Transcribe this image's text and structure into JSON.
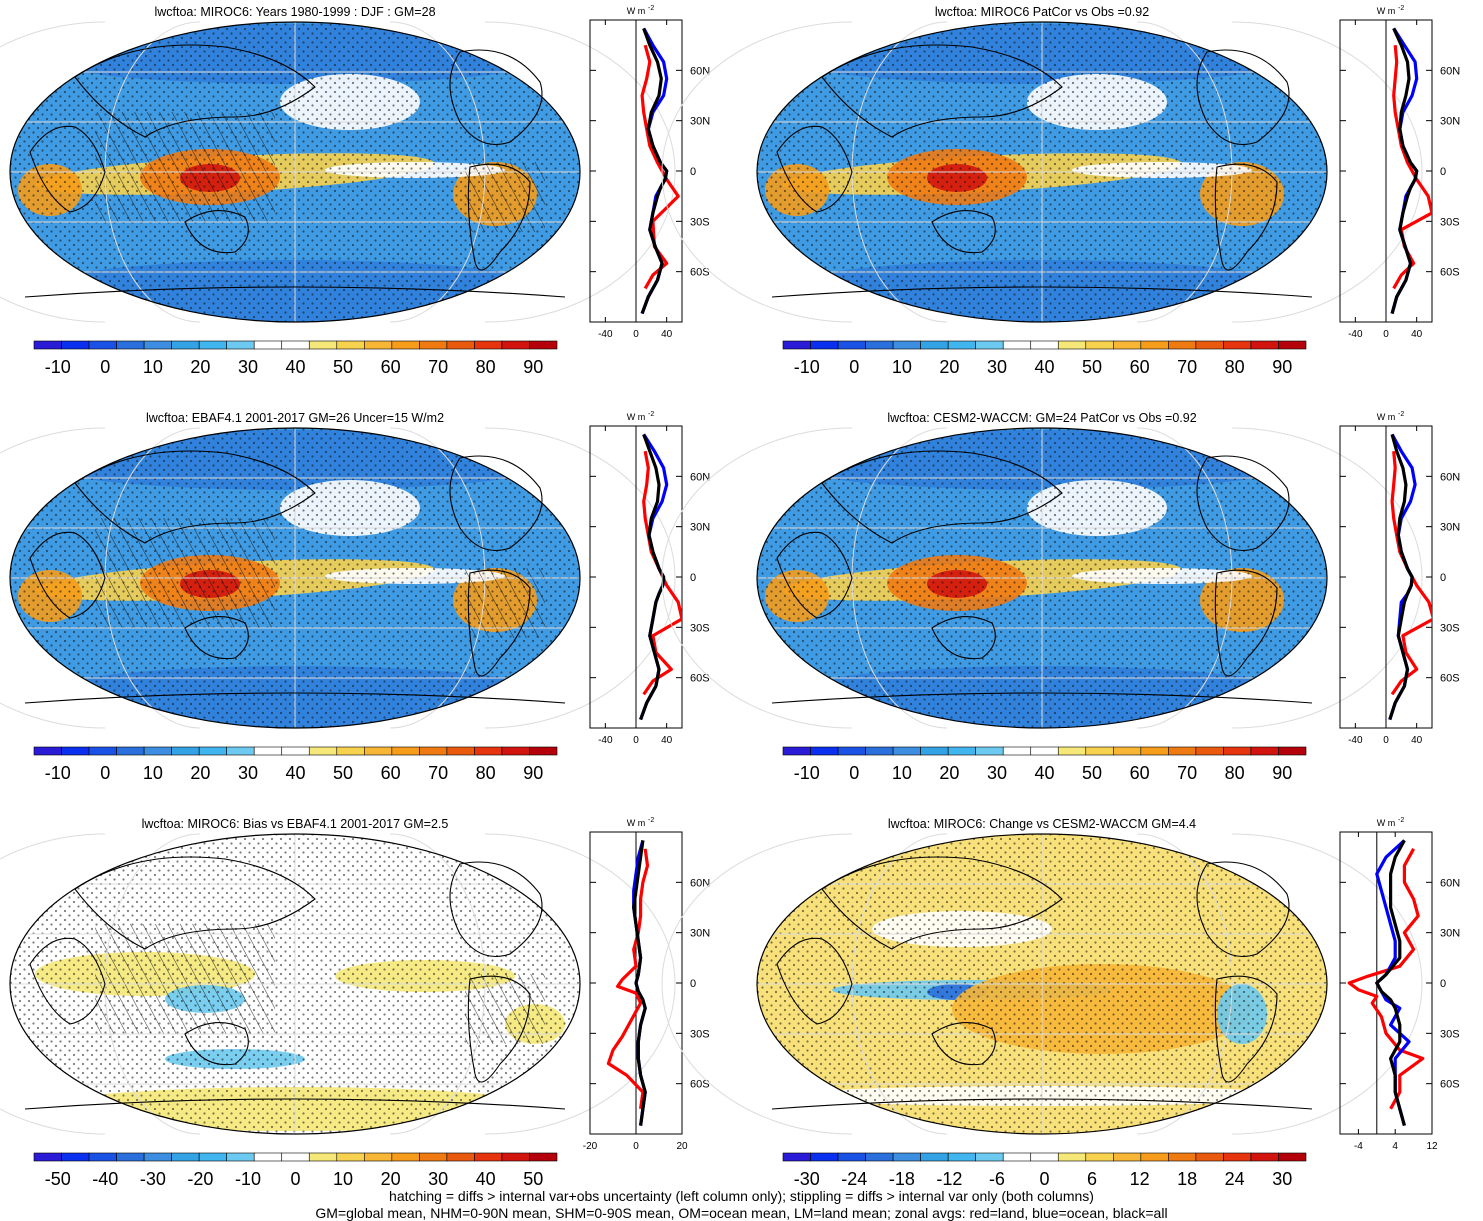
{
  "figure_notes": {
    "line1": "hatching = diffs > internal var+obs uncertainty (left column only); stippling = diffs > internal var only (both columns)",
    "line2": "GM=global mean, NHM=0-90N mean, SHM=0-90S mean, OM=ocean mean, LM=land mean; zonal avgs: red=land, blue=ocean, black=all"
  },
  "zonal_legend": {
    "land": "#ff0000",
    "ocean": "#0000ff",
    "all": "#000000"
  },
  "chart_data": [
    {
      "type": "heatmap",
      "panel": "miroc6-climatology",
      "title": "lwcftoa: MIROC6: Years 1980-1999 : DJF : GM=28",
      "global_mean": 28,
      "colorbar": {
        "ticks": [
          "-10",
          "0",
          "10",
          "20",
          "30",
          "40",
          "50",
          "60",
          "70",
          "80",
          "90"
        ],
        "range": [
          -15,
          95
        ],
        "palette": "blue-white-yellow-red"
      },
      "hatching": true,
      "stippling": true,
      "zonal_profile": {
        "unit_label": "W m",
        "unit_sup": "-2",
        "xlim": [
          -60,
          60
        ],
        "xticks": [
          "-40",
          "0",
          "40"
        ],
        "lat_ticks": [
          "60N",
          "30N",
          "0",
          "30S",
          "60S"
        ],
        "all": {
          "lat": [
            85,
            75,
            65,
            55,
            45,
            35,
            25,
            15,
            5,
            0,
            -5,
            -10,
            -15,
            -25,
            -35,
            -45,
            -55,
            -65,
            -75,
            -85
          ],
          "values": [
            10,
            18,
            28,
            33,
            30,
            20,
            16,
            22,
            32,
            40,
            38,
            32,
            28,
            22,
            18,
            25,
            34,
            28,
            16,
            8
          ]
        },
        "ocean": {
          "lat": [
            85,
            75,
            65,
            55,
            45,
            35,
            25,
            15,
            5,
            0,
            -5,
            -10,
            -15,
            -25,
            -35,
            -45,
            -55,
            -65,
            -75,
            -85
          ],
          "values": [
            10,
            22,
            36,
            40,
            36,
            22,
            16,
            22,
            32,
            40,
            38,
            32,
            26,
            22,
            18,
            25,
            34,
            28,
            16,
            8
          ]
        },
        "land": {
          "lat": [
            75,
            65,
            55,
            45,
            35,
            25,
            15,
            5,
            -5,
            -15,
            -30,
            -45,
            -55,
            -62,
            -70
          ],
          "values": [
            12,
            18,
            14,
            8,
            10,
            14,
            18,
            28,
            40,
            55,
            22,
            24,
            40,
            22,
            12
          ]
        }
      }
    },
    {
      "type": "heatmap",
      "panel": "miroc6-patcor",
      "title": "lwcftoa: MIROC6 PatCor vs Obs =0.92",
      "pattern_correlation": 0.92,
      "colorbar": {
        "ticks": [
          "-10",
          "0",
          "10",
          "20",
          "30",
          "40",
          "50",
          "60",
          "70",
          "80",
          "90"
        ],
        "range": [
          -15,
          95
        ],
        "palette": "blue-white-yellow-red"
      },
      "hatching": false,
      "stippling": true,
      "zonal_profile": {
        "unit_label": "W m",
        "unit_sup": "-2",
        "xlim": [
          -60,
          60
        ],
        "xticks": [
          "-40",
          "0",
          "40"
        ],
        "lat_ticks": [
          "60N",
          "30N",
          "0",
          "30S",
          "60S"
        ],
        "all": {
          "lat": [
            85,
            75,
            65,
            55,
            45,
            35,
            25,
            15,
            5,
            0,
            -5,
            -10,
            -15,
            -25,
            -35,
            -45,
            -55,
            -65,
            -75,
            -85
          ],
          "values": [
            10,
            20,
            28,
            30,
            26,
            20,
            18,
            22,
            32,
            40,
            38,
            32,
            28,
            22,
            18,
            25,
            32,
            26,
            14,
            8
          ]
        },
        "ocean": {
          "lat": [
            85,
            75,
            65,
            55,
            45,
            35,
            25,
            15,
            5,
            0,
            -5,
            -10,
            -15,
            -25,
            -35,
            -45,
            -55,
            -65,
            -75,
            -85
          ],
          "values": [
            10,
            24,
            38,
            40,
            34,
            22,
            18,
            22,
            32,
            40,
            38,
            32,
            26,
            22,
            18,
            25,
            32,
            26,
            14,
            8
          ]
        },
        "land": {
          "lat": [
            75,
            65,
            55,
            45,
            35,
            25,
            15,
            5,
            -5,
            -15,
            -25,
            -35,
            -45,
            -55,
            -62,
            -70
          ],
          "values": [
            12,
            14,
            12,
            10,
            12,
            16,
            20,
            28,
            40,
            55,
            60,
            20,
            24,
            36,
            20,
            10
          ]
        }
      }
    },
    {
      "type": "heatmap",
      "panel": "ebaf-observations",
      "title": "lwcftoa: EBAF4.1 2001-2017 GM=26 Uncer=15 W/m2",
      "global_mean": 26,
      "uncertainty": "15 W/m2",
      "colorbar": {
        "ticks": [
          "-10",
          "0",
          "10",
          "20",
          "30",
          "40",
          "50",
          "60",
          "70",
          "80",
          "90"
        ],
        "range": [
          -15,
          95
        ],
        "palette": "blue-white-yellow-red"
      },
      "hatching": true,
      "stippling": true,
      "zonal_profile": {
        "unit_label": "W m",
        "unit_sup": "-2",
        "xlim": [
          -60,
          60
        ],
        "xticks": [
          "-40",
          "0",
          "40"
        ],
        "lat_ticks": [
          "60N",
          "30N",
          "0",
          "30S",
          "60S"
        ],
        "all": {
          "lat": [
            85,
            75,
            65,
            55,
            45,
            35,
            25,
            15,
            5,
            0,
            -5,
            -10,
            -15,
            -25,
            -35,
            -45,
            -55,
            -65,
            -75,
            -85
          ],
          "values": [
            10,
            18,
            26,
            30,
            28,
            20,
            17,
            22,
            30,
            36,
            35,
            30,
            26,
            22,
            18,
            24,
            30,
            26,
            14,
            6
          ]
        },
        "ocean": {
          "lat": [
            85,
            75,
            65,
            55,
            45,
            35,
            25,
            15,
            5,
            0,
            -5,
            -10,
            -15,
            -25,
            -35,
            -45,
            -55,
            -65,
            -75,
            -85
          ],
          "values": [
            10,
            24,
            36,
            40,
            34,
            22,
            17,
            22,
            30,
            36,
            35,
            30,
            26,
            22,
            18,
            24,
            30,
            26,
            14,
            6
          ]
        },
        "land": {
          "lat": [
            75,
            65,
            55,
            45,
            35,
            25,
            15,
            5,
            -5,
            -15,
            -25,
            -35,
            -45,
            -55,
            -62,
            -70
          ],
          "values": [
            12,
            16,
            14,
            10,
            12,
            16,
            20,
            30,
            40,
            55,
            60,
            22,
            26,
            46,
            22,
            10
          ]
        }
      }
    },
    {
      "type": "heatmap",
      "panel": "cesm2-waccm-climatology",
      "title": "lwcftoa: CESM2-WACCM: GM=24 PatCor vs Obs =0.92",
      "global_mean": 24,
      "pattern_correlation": 0.92,
      "colorbar": {
        "ticks": [
          "-10",
          "0",
          "10",
          "20",
          "30",
          "40",
          "50",
          "60",
          "70",
          "80",
          "90"
        ],
        "range": [
          -15,
          95
        ],
        "palette": "blue-white-yellow-red"
      },
      "hatching": false,
      "stippling": true,
      "zonal_profile": {
        "unit_label": "W m",
        "unit_sup": "-2",
        "xlim": [
          -60,
          60
        ],
        "xticks": [
          "-40",
          "0",
          "40"
        ],
        "lat_ticks": [
          "60N",
          "30N",
          "0",
          "30S",
          "60S"
        ],
        "all": {
          "lat": [
            85,
            75,
            65,
            55,
            45,
            35,
            25,
            15,
            5,
            0,
            -5,
            -10,
            -15,
            -25,
            -35,
            -45,
            -55,
            -65,
            -75,
            -85
          ],
          "values": [
            8,
            14,
            22,
            26,
            24,
            18,
            16,
            20,
            28,
            34,
            33,
            28,
            24,
            20,
            16,
            22,
            28,
            24,
            12,
            5
          ]
        },
        "ocean": {
          "lat": [
            85,
            75,
            65,
            55,
            45,
            35,
            25,
            15,
            5,
            0,
            -5,
            -10,
            -15,
            -25,
            -35,
            -45,
            -55,
            -65,
            -75,
            -85
          ],
          "values": [
            8,
            20,
            34,
            38,
            32,
            20,
            16,
            20,
            28,
            34,
            33,
            28,
            20,
            18,
            16,
            22,
            28,
            24,
            12,
            5
          ]
        },
        "land": {
          "lat": [
            75,
            65,
            55,
            45,
            35,
            25,
            15,
            5,
            -5,
            -15,
            -25,
            -35,
            -45,
            -55,
            -62,
            -70
          ],
          "values": [
            10,
            12,
            10,
            8,
            10,
            14,
            18,
            28,
            40,
            56,
            62,
            22,
            26,
            40,
            20,
            8
          ]
        }
      }
    },
    {
      "type": "heatmap",
      "panel": "miroc6-bias",
      "title": "lwcftoa: MIROC6: Bias vs EBAF4.1 2001-2017 GM=2.5",
      "global_mean": 2.5,
      "colorbar": {
        "ticks": [
          "-50",
          "-40",
          "-30",
          "-20",
          "-10",
          "0",
          "10",
          "20",
          "30",
          "40",
          "50"
        ],
        "range": [
          -55,
          55
        ],
        "palette": "blue-white-yellow-red"
      },
      "hatching": true,
      "stippling": true,
      "zonal_profile": {
        "unit_label": "W m",
        "unit_sup": "-2",
        "xlim": [
          -20,
          20
        ],
        "xticks": [
          "-20",
          "0",
          "20"
        ],
        "lat_ticks": [
          "60N",
          "30N",
          "0",
          "30S",
          "60S"
        ],
        "all": {
          "lat": [
            85,
            75,
            65,
            55,
            45,
            35,
            25,
            15,
            5,
            0,
            -5,
            -10,
            -15,
            -25,
            -35,
            -45,
            -55,
            -65,
            -75,
            -85
          ],
          "values": [
            3,
            2,
            1,
            0,
            -1,
            0,
            1,
            2,
            1,
            0,
            1,
            3,
            4,
            2,
            1,
            1,
            2,
            4,
            3,
            2
          ]
        },
        "ocean": {
          "lat": [
            85,
            75,
            65,
            55,
            45,
            35,
            25,
            15,
            5,
            0,
            -5,
            -10,
            -15,
            -25,
            -35,
            -45,
            -55,
            -65,
            -75,
            -85
          ],
          "values": [
            3,
            1,
            0,
            -1,
            -1,
            0,
            1,
            2,
            1,
            0,
            1,
            3,
            4,
            2,
            1,
            1,
            2,
            4,
            3,
            2
          ]
        },
        "land": {
          "lat": [
            80,
            70,
            60,
            50,
            40,
            30,
            20,
            10,
            2,
            -2,
            -6,
            -12,
            -22,
            -32,
            -40,
            -48,
            -55,
            -65,
            -75
          ],
          "values": [
            4,
            5,
            3,
            2,
            2,
            1,
            -1,
            0,
            -6,
            -8,
            0,
            2,
            -2,
            -6,
            -10,
            -12,
            -4,
            3,
            2
          ]
        }
      }
    },
    {
      "type": "heatmap",
      "panel": "miroc6-change",
      "title": "lwcftoa: MIROC6: Change vs CESM2-WACCM GM=4.4",
      "global_mean": 4.4,
      "colorbar": {
        "ticks": [
          "-30",
          "-24",
          "-18",
          "-12",
          "-6",
          "0",
          "6",
          "12",
          "18",
          "24",
          "30"
        ],
        "range": [
          -33,
          33
        ],
        "palette": "blue-white-yellow-red"
      },
      "hatching": false,
      "stippling": true,
      "zonal_profile": {
        "unit_label": "W m",
        "unit_sup": "-2",
        "xlim": [
          -8,
          12
        ],
        "xticks": [
          "-4",
          "4",
          "12"
        ],
        "lat_ticks": [
          "60N",
          "30N",
          "0",
          "30S",
          "60S"
        ],
        "all": {
          "lat": [
            85,
            75,
            65,
            55,
            45,
            35,
            25,
            15,
            5,
            0,
            -5,
            -10,
            -15,
            -25,
            -35,
            -45,
            -55,
            -65,
            -75,
            -85
          ],
          "values": [
            6,
            4,
            3,
            3,
            3,
            4,
            5,
            5,
            2,
            0,
            1,
            3,
            4,
            5,
            5,
            3,
            4,
            4,
            5,
            6
          ]
        },
        "ocean": {
          "lat": [
            85,
            75,
            65,
            55,
            45,
            35,
            25,
            15,
            5,
            0,
            -5,
            -10,
            -15,
            -25,
            -35,
            -45,
            -55,
            -65,
            -75,
            -85
          ],
          "values": [
            6,
            2,
            0,
            1,
            2,
            3,
            4,
            4,
            2,
            0,
            1,
            2,
            5,
            3,
            7,
            4,
            4,
            4,
            5,
            6
          ]
        },
        "land": {
          "lat": [
            80,
            70,
            60,
            50,
            40,
            30,
            20,
            10,
            4,
            0,
            -4,
            -8,
            -12,
            -20,
            -30,
            -40,
            -45,
            -55,
            -65,
            -75
          ],
          "values": [
            8,
            6,
            6,
            8,
            9,
            6,
            8,
            5,
            -2,
            -6,
            -4,
            0,
            -1,
            1,
            2,
            5,
            10,
            5,
            5,
            3
          ]
        }
      }
    }
  ]
}
